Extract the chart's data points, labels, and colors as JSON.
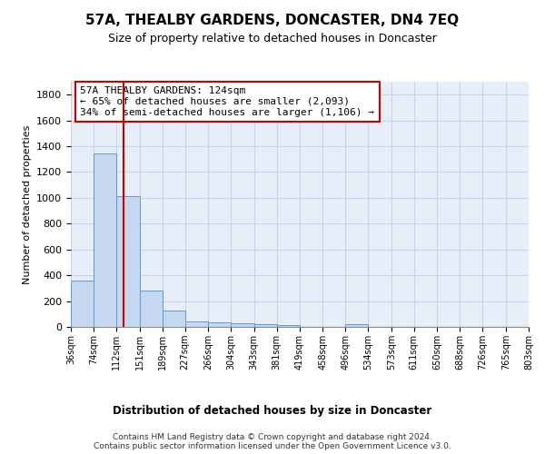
{
  "title": "57A, THEALBY GARDENS, DONCASTER, DN4 7EQ",
  "subtitle": "Size of property relative to detached houses in Doncaster",
  "xlabel": "Distribution of detached houses by size in Doncaster",
  "ylabel": "Number of detached properties",
  "bin_edges": [
    36,
    74,
    112,
    151,
    189,
    227,
    266,
    304,
    343,
    381,
    419,
    458,
    496,
    534,
    573,
    611,
    650,
    688,
    726,
    765,
    803
  ],
  "bar_heights": [
    360,
    1345,
    1010,
    285,
    128,
    42,
    35,
    25,
    20,
    15,
    0,
    0,
    20,
    0,
    0,
    0,
    0,
    0,
    0,
    0
  ],
  "bar_color": "#c5d8ef",
  "bar_edge_color": "#5b9bd5",
  "vline_x": 124,
  "vline_color": "#cc0000",
  "ylim": [
    0,
    1900
  ],
  "yticks": [
    0,
    200,
    400,
    600,
    800,
    1000,
    1200,
    1400,
    1600,
    1800
  ],
  "annotation_title": "57A THEALBY GARDENS: 124sqm",
  "annotation_line1": "← 65% of detached houses are smaller (2,093)",
  "annotation_line2": "34% of semi-detached houses are larger (1,106) →",
  "annotation_box_color": "#ffffff",
  "annotation_box_edge": "#cc0000",
  "grid_color": "#c8d4e8",
  "background_color": "#e8eef8",
  "footer_line1": "Contains HM Land Registry data © Crown copyright and database right 2024.",
  "footer_line2": "Contains public sector information licensed under the Open Government Licence v3.0."
}
